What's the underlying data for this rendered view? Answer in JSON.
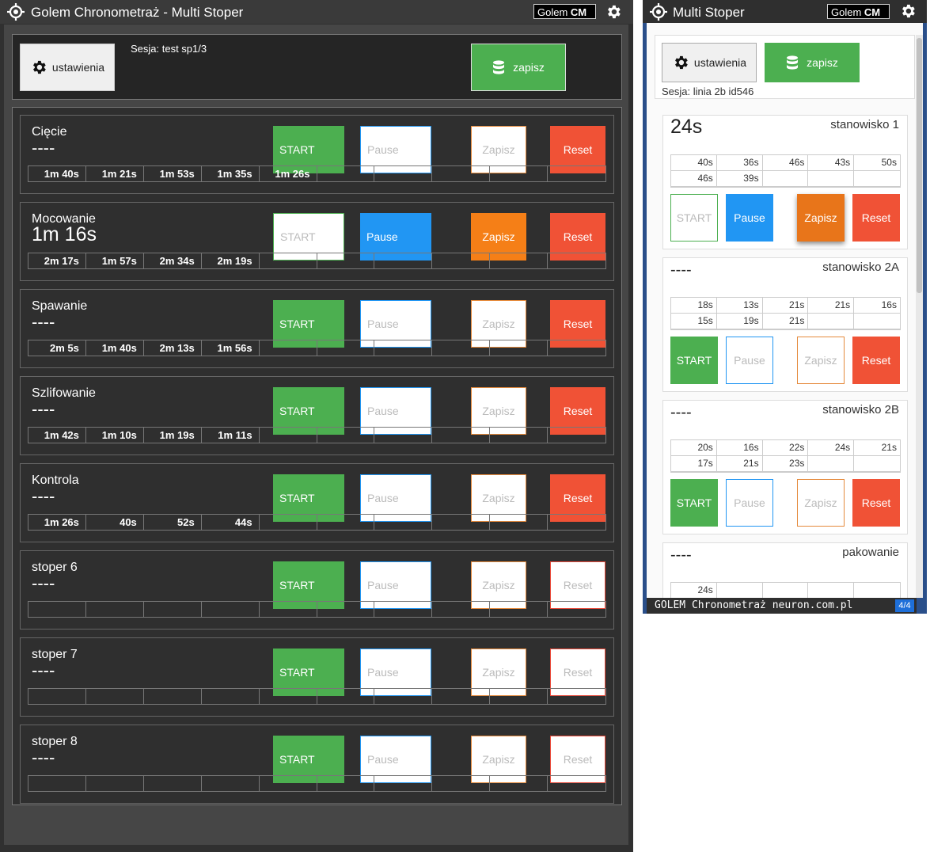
{
  "left": {
    "title": "Golem Chronometraż - Multi Stoper",
    "brand_a": "Golem",
    "brand_b": "CM",
    "settings_label": "ustawienia",
    "session": "Sesja: test sp1/3",
    "save_label": "zapisz",
    "rows": [
      {
        "name": "Cięcie",
        "time": "----",
        "state": "idle",
        "laps": [
          "1m 40s",
          "1m 21s",
          "1m 53s",
          "1m 35s",
          "1m 26s",
          "",
          "",
          "",
          "",
          ""
        ]
      },
      {
        "name": "Mocowanie",
        "time": "1m 16s",
        "state": "running",
        "laps": [
          "2m 17s",
          "1m 57s",
          "2m 34s",
          "2m 19s",
          "",
          "",
          "",
          "",
          "",
          ""
        ]
      },
      {
        "name": "Spawanie",
        "time": "----",
        "state": "idle",
        "laps": [
          "2m 5s",
          "1m 40s",
          "2m 13s",
          "1m 56s",
          "",
          "",
          "",
          "",
          "",
          ""
        ]
      },
      {
        "name": "Szlifowanie",
        "time": "----",
        "state": "idle",
        "laps": [
          "1m 42s",
          "1m 10s",
          "1m 19s",
          "1m 11s",
          "",
          "",
          "",
          "",
          "",
          ""
        ]
      },
      {
        "name": "Kontrola",
        "time": "----",
        "state": "idle",
        "laps": [
          "1m 26s",
          "40s",
          "52s",
          "44s",
          "",
          "",
          "",
          "",
          "",
          ""
        ]
      },
      {
        "name": "stoper 6",
        "time": "----",
        "state": "empty",
        "laps": [
          "",
          "",
          "",
          "",
          "",
          "",
          "",
          "",
          "",
          ""
        ]
      },
      {
        "name": "stoper 7",
        "time": "----",
        "state": "empty",
        "laps": [
          "",
          "",
          "",
          "",
          "",
          "",
          "",
          "",
          "",
          ""
        ]
      },
      {
        "name": "stoper 8",
        "time": "----",
        "state": "empty",
        "laps": [
          "",
          "",
          "",
          "",
          "",
          "",
          "",
          "",
          "",
          ""
        ]
      }
    ]
  },
  "buttons": {
    "start": "START",
    "pause": "Pause",
    "zapisz": "Zapisz",
    "reset": "Reset"
  },
  "right": {
    "title": "Multi Stoper",
    "brand_a": "Golem",
    "brand_b": "CM",
    "settings_label": "ustawienia",
    "save_label": "zapisz",
    "session": "Sesja: linia 2b id546",
    "footer": "GOLEM Chronometraż neuron.com.pl",
    "pager": "4/4",
    "rows": [
      {
        "name": "stanowisko 1",
        "time": "24s",
        "state": "running",
        "laps": [
          "40s",
          "36s",
          "46s",
          "43s",
          "50s",
          "46s",
          "39s",
          "",
          "",
          ""
        ]
      },
      {
        "name": "stanowisko 2A",
        "time": "----",
        "state": "idle",
        "laps": [
          "18s",
          "13s",
          "21s",
          "21s",
          "16s",
          "15s",
          "19s",
          "21s",
          "",
          ""
        ]
      },
      {
        "name": "stanowisko 2B",
        "time": "----",
        "state": "idle",
        "laps": [
          "20s",
          "16s",
          "22s",
          "24s",
          "21s",
          "17s",
          "21s",
          "23s",
          "",
          ""
        ]
      },
      {
        "name": "pakowanie",
        "time": "----",
        "state": "idle",
        "laps": [
          "24s",
          "",
          "",
          "",
          "",
          "",
          "",
          "",
          "",
          ""
        ]
      }
    ]
  },
  "colors": {
    "green": "#4caf50",
    "blue": "#2196f3",
    "orange": "#f57f17",
    "red": "#f05236"
  },
  "icons": {
    "logo": "crosshair-icon",
    "settings": "gear-icon",
    "save": "database-icon"
  }
}
